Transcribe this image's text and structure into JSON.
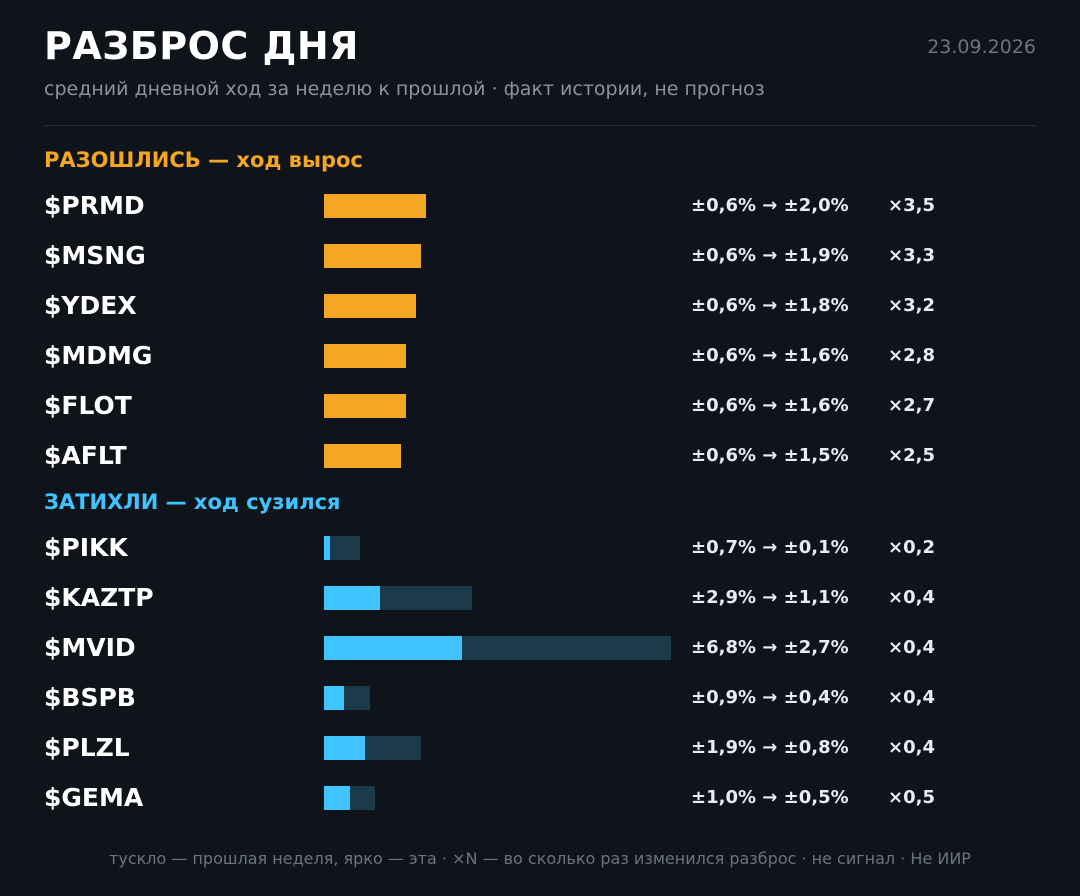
{
  "header": {
    "title": "РАЗБРОС ДНЯ",
    "date": "23.09.2026",
    "subtitle": "средний дневной ход за неделю к прошлой · факт истории, не прогноз"
  },
  "colors": {
    "background": "#0f141b",
    "diverged": "#f5a623",
    "calmed": "#40c4ff",
    "calmed_prev": "#1d3a4b"
  },
  "bar_scale_max_pct": 7.0,
  "sections": [
    {
      "key": "diverged",
      "title": "РАЗОШЛИСЬ — ход вырос",
      "rows": [
        {
          "ticker": "$PRMD",
          "prev_pct": 0.6,
          "curr_pct": 2.0,
          "range": "±0,6% → ±2,0%",
          "mult": "×3,5"
        },
        {
          "ticker": "$MSNG",
          "prev_pct": 0.6,
          "curr_pct": 1.9,
          "range": "±0,6% → ±1,9%",
          "mult": "×3,3"
        },
        {
          "ticker": "$YDEX",
          "prev_pct": 0.6,
          "curr_pct": 1.8,
          "range": "±0,6% → ±1,8%",
          "mult": "×3,2"
        },
        {
          "ticker": "$MDMG",
          "prev_pct": 0.6,
          "curr_pct": 1.6,
          "range": "±0,6% → ±1,6%",
          "mult": "×2,8"
        },
        {
          "ticker": "$FLOT",
          "prev_pct": 0.6,
          "curr_pct": 1.6,
          "range": "±0,6% → ±1,6%",
          "mult": "×2,7"
        },
        {
          "ticker": "$AFLT",
          "prev_pct": 0.6,
          "curr_pct": 1.5,
          "range": "±0,6% → ±1,5%",
          "mult": "×2,5"
        }
      ]
    },
    {
      "key": "calmed",
      "title": "ЗАТИХЛИ — ход сузился",
      "rows": [
        {
          "ticker": "$PIKK",
          "prev_pct": 0.7,
          "curr_pct": 0.1,
          "range": "±0,7% → ±0,1%",
          "mult": "×0,2"
        },
        {
          "ticker": "$KAZTP",
          "prev_pct": 2.9,
          "curr_pct": 1.1,
          "range": "±2,9% → ±1,1%",
          "mult": "×0,4"
        },
        {
          "ticker": "$MVID",
          "prev_pct": 6.8,
          "curr_pct": 2.7,
          "range": "±6,8% → ±2,7%",
          "mult": "×0,4"
        },
        {
          "ticker": "$BSPB",
          "prev_pct": 0.9,
          "curr_pct": 0.4,
          "range": "±0,9% → ±0,4%",
          "mult": "×0,4"
        },
        {
          "ticker": "$PLZL",
          "prev_pct": 1.9,
          "curr_pct": 0.8,
          "range": "±1,9% → ±0,8%",
          "mult": "×0,4"
        },
        {
          "ticker": "$GEMA",
          "prev_pct": 1.0,
          "curr_pct": 0.5,
          "range": "±1,0% → ±0,5%",
          "mult": "×0,5"
        }
      ]
    }
  ],
  "footer": "тускло — прошлая неделя, ярко — эта · ×N — во сколько раз изменился разброс · не сигнал · Не ИИР"
}
